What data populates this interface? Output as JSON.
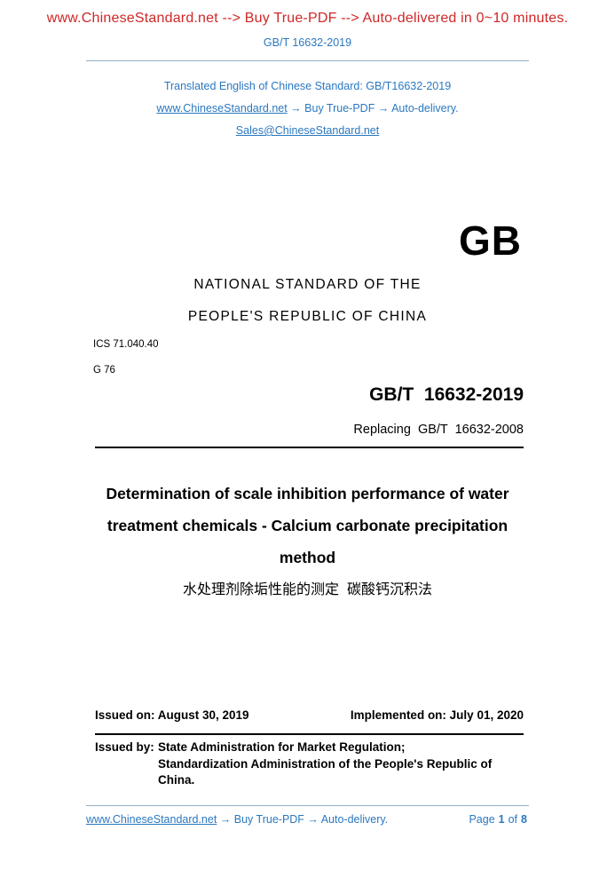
{
  "colors": {
    "promo_red": "#cf2727",
    "link_blue": "#2a78c0",
    "rule_blue": "#93afc4",
    "text_black": "#000000"
  },
  "header": {
    "promo_line": "www.ChineseStandard.net --> Buy True-PDF --> Auto-delivered in 0~10 minutes.",
    "doc_number": "GB/T 16632-2019"
  },
  "translated_block": {
    "line1": "Translated English of Chinese Standard: GB/T16632-2019",
    "site_link": "www.ChineseStandard.net",
    "line2_rest": " → Buy True-PDF → Auto-delivery.",
    "email_link": "Sales@ChineseStandard.net"
  },
  "standard": {
    "logo": "GB",
    "national_line1": "NATIONAL STANDARD OF THE",
    "national_line2": "PEOPLE'S REPUBLIC OF CHINA",
    "ics": "ICS 71.040.40",
    "class_code": "G 76",
    "number": "GB/T  16632-2019",
    "replacing": "Replacing  GB/T  16632-2008"
  },
  "title": {
    "lines": [
      "Determination of scale inhibition performance of water",
      "treatment chemicals - Calcium carbonate precipitation",
      "method"
    ],
    "chinese": "水处理剂除垢性能的测定  碳酸钙沉积法"
  },
  "dates": {
    "issued": "Issued on: August 30, 2019",
    "implemented": "Implemented on: July 01, 2020"
  },
  "issued_by": {
    "label": "Issued by:",
    "line1": "State Administration for Market Regulation;",
    "line2": "Standardization Administration of the People's Republic of",
    "line3": "China."
  },
  "footer": {
    "site_link": "www.ChineseStandard.net",
    "rest": " → Buy True-PDF → Auto-delivery.",
    "page_label": "Page",
    "page_number": "1",
    "of_label": "of",
    "page_total": "8"
  }
}
